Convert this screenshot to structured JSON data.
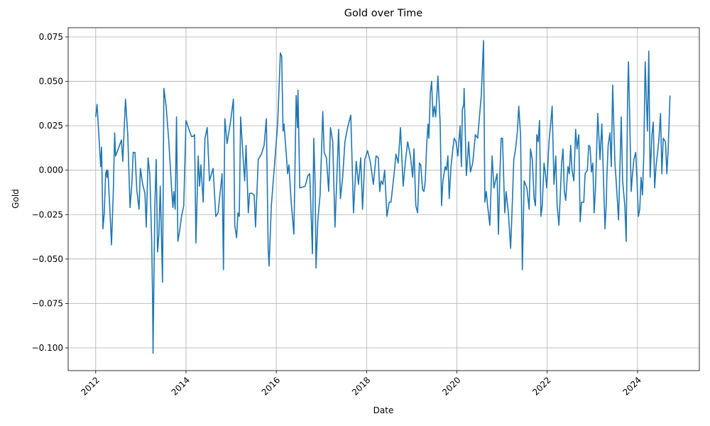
{
  "chart_data": {
    "type": "line",
    "title": "Gold over Time",
    "xlabel": "Date",
    "ylabel": "Gold",
    "color": "#1f77b4",
    "grid": true,
    "xlim": [
      2011.39,
      2025.37
    ],
    "ylim": [
      -0.1128,
      0.0802
    ],
    "xticks": [
      2012,
      2014,
      2016,
      2018,
      2020,
      2022,
      2024
    ],
    "yticks": [
      {
        "value": -0.1,
        "label": "−0.100"
      },
      {
        "value": -0.075,
        "label": "−0.075"
      },
      {
        "value": -0.05,
        "label": "−0.050"
      },
      {
        "value": -0.025,
        "label": "−0.025"
      },
      {
        "value": 0,
        "label": "0.000"
      },
      {
        "value": 0.025,
        "label": "0.025"
      },
      {
        "value": 0.05,
        "label": "0.050"
      },
      {
        "value": 0.075,
        "label": "0.075"
      }
    ],
    "x": [
      2012.0,
      2012.03,
      2012.06,
      2012.11,
      2012.13,
      2012.16,
      2012.19,
      2012.22,
      2012.24,
      2012.25,
      2012.27,
      2012.31,
      2012.35,
      2012.39,
      2012.42,
      2012.44,
      2012.5,
      2012.57,
      2012.6,
      2012.66,
      2012.71,
      2012.76,
      2012.8,
      2012.83,
      2012.87,
      2012.91,
      2012.96,
      2012.99,
      2013.04,
      2013.09,
      2013.12,
      2013.16,
      2013.2,
      2013.24,
      2013.26,
      2013.27,
      2013.31,
      2013.34,
      2013.37,
      2013.4,
      2013.43,
      2013.48,
      2013.51,
      2013.56,
      2013.62,
      2013.68,
      2013.71,
      2013.73,
      2013.76,
      2013.79,
      2013.82,
      2013.86,
      2013.9,
      2013.95,
      2014.0,
      2014.12,
      2014.16,
      2014.19,
      2014.22,
      2014.27,
      2014.3,
      2014.33,
      2014.38,
      2014.42,
      2014.47,
      2014.52,
      2014.6,
      2014.66,
      2014.71,
      2014.8,
      2014.83,
      2014.86,
      2014.91,
      2014.99,
      2015.05,
      2015.08,
      2015.12,
      2015.15,
      2015.18,
      2015.21,
      2015.26,
      2015.3,
      2015.33,
      2015.38,
      2015.41,
      2015.46,
      2015.51,
      2015.54,
      2015.6,
      2015.67,
      2015.73,
      2015.78,
      2015.82,
      2015.84,
      2015.89,
      2015.96,
      2016.03,
      2016.09,
      2016.12,
      2016.15,
      2016.17,
      2016.23,
      2016.25,
      2016.28,
      2016.33,
      2016.39,
      2016.44,
      2016.47,
      2016.48,
      2016.52,
      2016.64,
      2016.7,
      2016.74,
      2016.77,
      2016.8,
      2016.83,
      2016.86,
      2016.88,
      2016.92,
      2016.97,
      2017.03,
      2017.06,
      2017.11,
      2017.16,
      2017.2,
      2017.25,
      2017.3,
      2017.33,
      2017.38,
      2017.42,
      2017.47,
      2017.52,
      2017.58,
      2017.65,
      2017.71,
      2017.77,
      2017.82,
      2017.87,
      2017.91,
      2017.96,
      2018.02,
      2018.08,
      2018.15,
      2018.21,
      2018.26,
      2018.29,
      2018.32,
      2018.36,
      2018.4,
      2018.45,
      2018.5,
      2018.54,
      2018.61,
      2018.65,
      2018.7,
      2018.75,
      2018.81,
      2018.86,
      2018.91,
      2018.97,
      2019.02,
      2019.05,
      2019.09,
      2019.13,
      2019.17,
      2019.2,
      2019.24,
      2019.27,
      2019.3,
      2019.33,
      2019.36,
      2019.38,
      2019.41,
      2019.44,
      2019.47,
      2019.5,
      2019.53,
      2019.58,
      2019.63,
      2019.66,
      2019.69,
      2019.74,
      2019.77,
      2019.8,
      2019.83,
      2019.87,
      2019.91,
      2019.94,
      2019.98,
      2020.02,
      2020.07,
      2020.1,
      2020.12,
      2020.15,
      2020.16,
      2020.21,
      2020.26,
      2020.3,
      2020.35,
      2020.41,
      2020.46,
      2020.54,
      2020.59,
      2020.62,
      2020.65,
      2020.68,
      2020.73,
      2020.78,
      2020.82,
      2020.89,
      2020.92,
      2020.95,
      2020.98,
      2021.01,
      2021.06,
      2021.09,
      2021.14,
      2021.19,
      2021.22,
      2021.26,
      2021.3,
      2021.34,
      2021.37,
      2021.41,
      2021.45,
      2021.49,
      2021.55,
      2021.6,
      2021.63,
      2021.67,
      2021.71,
      2021.74,
      2021.77,
      2021.8,
      2021.83,
      2021.86,
      2021.89,
      2021.93,
      2021.96,
      2021.99,
      2022.04,
      2022.08,
      2022.11,
      2022.15,
      2022.19,
      2022.22,
      2022.26,
      2022.29,
      2022.32,
      2022.35,
      2022.38,
      2022.41,
      2022.46,
      2022.49,
      2022.52,
      2022.55,
      2022.59,
      2022.63,
      2022.66,
      2022.7,
      2022.73,
      2022.76,
      2022.81,
      2022.84,
      2022.89,
      2022.92,
      2022.95,
      2022.98,
      2023.01,
      2023.04,
      2023.07,
      2023.12,
      2023.17,
      2023.21,
      2023.28,
      2023.31,
      2023.32,
      2023.35,
      2023.39,
      2023.42,
      2023.45,
      2023.5,
      2023.53,
      2023.58,
      2023.64,
      2023.67,
      2023.72,
      2023.75,
      2023.78,
      2023.8,
      2023.83,
      2023.86,
      2023.89,
      2023.92,
      2023.96,
      2023.99,
      2024.02,
      2024.05,
      2024.08,
      2024.11,
      2024.14,
      2024.17,
      2024.22,
      2024.25,
      2024.28,
      2024.32,
      2024.35,
      2024.38,
      2024.41,
      2024.44,
      2024.47,
      2024.51,
      2024.54,
      2024.57,
      2024.62,
      2024.65,
      2024.68,
      2024.72
    ],
    "values": [
      0.03,
      0.037,
      0.024,
      0.002,
      0.013,
      -0.033,
      -0.024,
      -0.002,
      0.0,
      -0.004,
      0.0,
      -0.02,
      -0.042,
      -0.012,
      0.021,
      0.008,
      0.012,
      0.017,
      0.005,
      0.04,
      0.02,
      -0.021,
      -0.008,
      0.01,
      0.01,
      -0.011,
      -0.022,
      0.001,
      -0.008,
      -0.013,
      -0.032,
      0.007,
      -0.003,
      -0.04,
      -0.072,
      -0.103,
      -0.02,
      0.006,
      -0.046,
      -0.036,
      -0.009,
      -0.063,
      0.046,
      0.036,
      0.016,
      -0.01,
      -0.021,
      -0.012,
      -0.022,
      0.03,
      -0.04,
      -0.034,
      -0.026,
      -0.02,
      0.028,
      0.019,
      0.019,
      0.02,
      -0.041,
      0.008,
      -0.009,
      0.003,
      -0.018,
      0.018,
      0.024,
      -0.006,
      0.001,
      -0.026,
      -0.024,
      -0.002,
      -0.056,
      0.029,
      0.015,
      0.028,
      0.04,
      -0.031,
      -0.038,
      -0.024,
      -0.026,
      0.03,
      0.009,
      -0.006,
      0.014,
      -0.024,
      -0.013,
      -0.013,
      -0.014,
      -0.032,
      0.006,
      0.009,
      0.014,
      0.029,
      -0.044,
      -0.054,
      -0.02,
      0.003,
      0.026,
      0.066,
      0.064,
      0.022,
      0.026,
      0.006,
      -0.002,
      0.003,
      -0.018,
      -0.036,
      0.042,
      0.024,
      0.045,
      -0.01,
      -0.009,
      -0.003,
      -0.002,
      -0.024,
      -0.047,
      0.018,
      -0.008,
      -0.055,
      -0.028,
      -0.014,
      0.033,
      0.01,
      0.007,
      -0.012,
      0.024,
      0.016,
      -0.032,
      -0.012,
      0.023,
      -0.016,
      -0.004,
      0.016,
      0.024,
      0.031,
      -0.024,
      0.005,
      -0.008,
      0.007,
      -0.022,
      0.006,
      0.011,
      0.005,
      -0.008,
      0.008,
      0.007,
      -0.012,
      -0.006,
      -0.008,
      0.0,
      -0.026,
      -0.018,
      -0.018,
      -0.002,
      0.009,
      0.004,
      0.024,
      -0.009,
      0.005,
      0.016,
      0.008,
      -0.004,
      0.012,
      -0.02,
      -0.024,
      0.004,
      0.003,
      -0.011,
      -0.012,
      -0.006,
      0.014,
      0.026,
      0.018,
      0.043,
      0.05,
      0.03,
      0.036,
      0.03,
      0.053,
      0.026,
      -0.02,
      -0.006,
      0.002,
      0.0,
      0.008,
      -0.016,
      0.002,
      0.012,
      0.018,
      0.016,
      0.008,
      0.025,
      0.002,
      0.034,
      0.037,
      0.046,
      -0.003,
      0.016,
      -0.001,
      0.004,
      0.02,
      0.018,
      0.042,
      0.073,
      -0.018,
      -0.012,
      -0.02,
      -0.031,
      0.008,
      -0.01,
      -0.002,
      -0.036,
      -0.004,
      0.018,
      0.018,
      -0.024,
      -0.012,
      -0.024,
      -0.044,
      -0.024,
      0.006,
      0.012,
      0.022,
      0.036,
      0.02,
      -0.056,
      -0.006,
      -0.01,
      -0.022,
      0.012,
      0.006,
      -0.016,
      -0.02,
      0.02,
      0.016,
      0.028,
      -0.026,
      -0.02,
      0.004,
      -0.002,
      -0.01,
      0.016,
      0.027,
      0.036,
      -0.008,
      0.008,
      -0.02,
      -0.031,
      -0.014,
      0.004,
      0.012,
      -0.012,
      -0.017,
      0.002,
      -0.002,
      0.014,
      0.0,
      -0.006,
      0.023,
      0.012,
      0.02,
      -0.029,
      -0.018,
      -0.018,
      -0.002,
      0.0,
      0.014,
      0.013,
      -0.001,
      0.004,
      -0.024,
      -0.01,
      0.032,
      0.006,
      0.026,
      -0.033,
      -0.018,
      -0.005,
      0.014,
      0.021,
      0.002,
      0.048,
      0.004,
      -0.007,
      -0.028,
      0.03,
      -0.006,
      -0.02,
      -0.04,
      0.04,
      0.061,
      0.026,
      -0.012,
      -0.002,
      0.006,
      0.01,
      -0.006,
      -0.026,
      -0.022,
      -0.004,
      -0.014,
      0.009,
      0.061,
      0.022,
      0.067,
      -0.004,
      0.02,
      0.027,
      -0.01,
      0.002,
      0.009,
      0.016,
      0.032,
      -0.002,
      0.018,
      0.016,
      -0.002,
      0.012,
      0.042
    ]
  }
}
